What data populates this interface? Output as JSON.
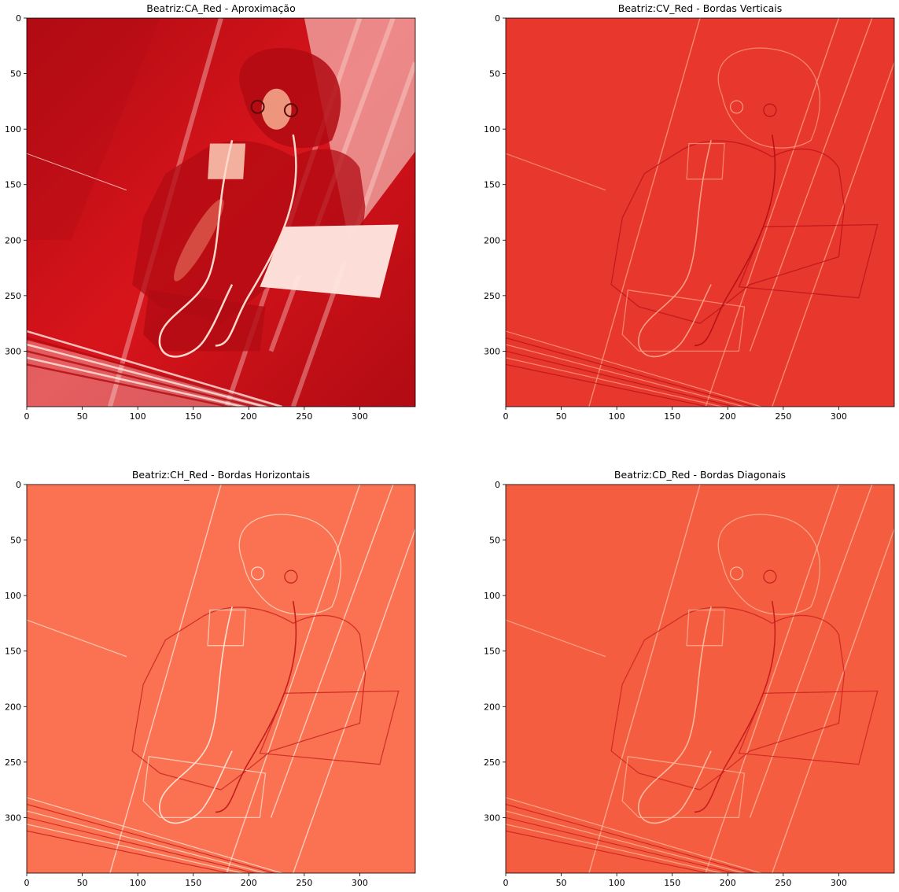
{
  "figure": {
    "panels": [
      {
        "id": "ca",
        "title": "Beatriz:CA_Red - Aproximação",
        "content": "approximation",
        "base_color": "#d8141b",
        "light_color": "#ffe9e2",
        "dark_color": "#b10b13"
      },
      {
        "id": "cv",
        "title": "Beatriz:CV_Red - Bordas Verticais",
        "content": "vertical-edges",
        "base_color": "#e8372c",
        "light_color": "#fc9d82",
        "dark_color": "#b81219"
      },
      {
        "id": "ch",
        "title": "Beatriz:CH_Red - Bordas Horizontais",
        "content": "horizontal-edges",
        "base_color": "#fb7252",
        "light_color": "#fee0d2",
        "dark_color": "#c41c1c"
      },
      {
        "id": "cd",
        "title": "Beatriz:CD_Red - Bordas Diagonais",
        "content": "diagonal-edges",
        "base_color": "#f55d40",
        "light_color": "#fdb89e",
        "dark_color": "#c81d1f"
      }
    ],
    "x_ticks": [
      "0",
      "50",
      "100",
      "150",
      "200",
      "250",
      "300"
    ],
    "y_ticks": [
      "0",
      "50",
      "100",
      "150",
      "200",
      "250",
      "300"
    ],
    "axis_range": [
      0,
      350
    ]
  }
}
